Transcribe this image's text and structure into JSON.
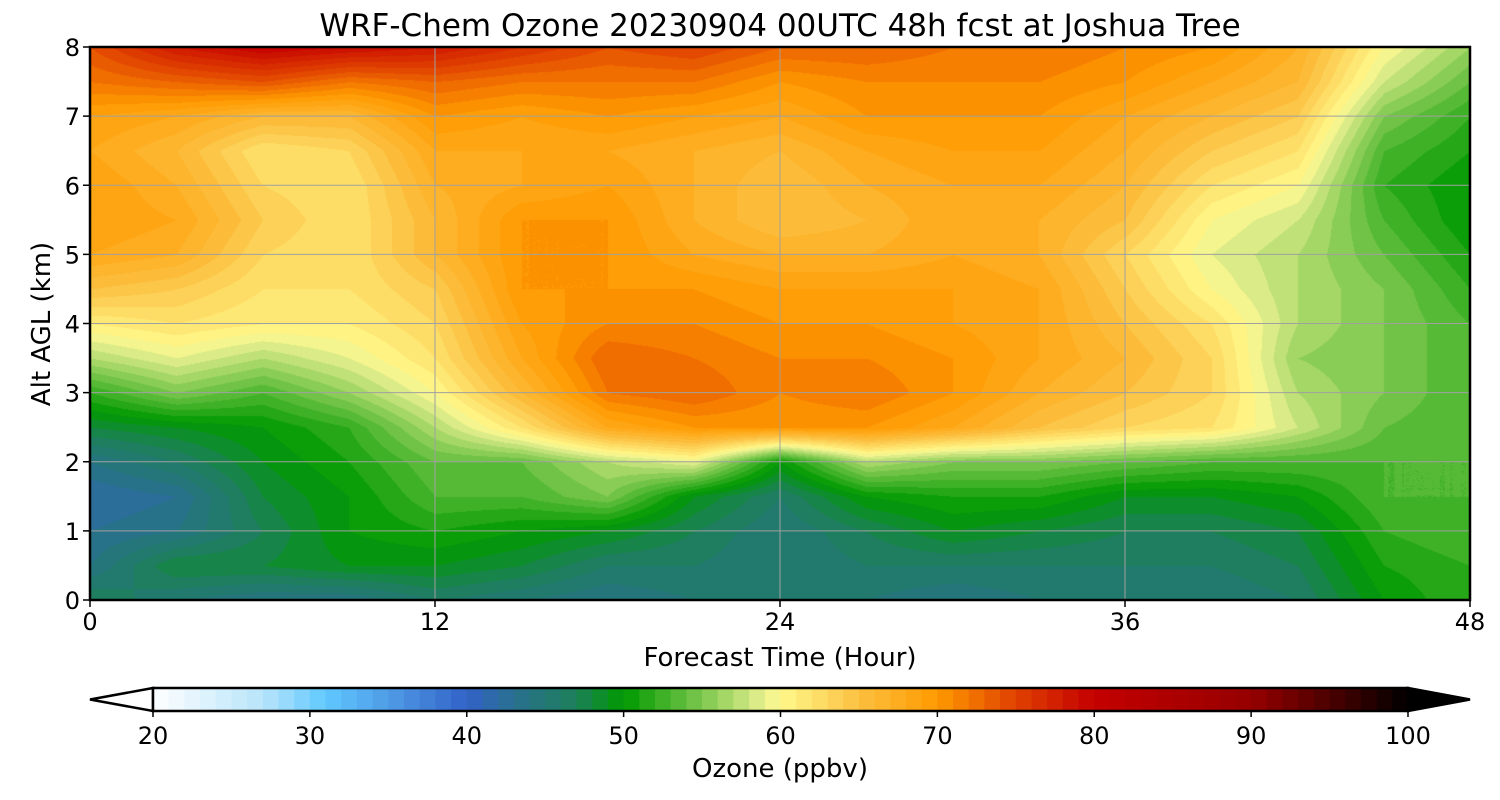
{
  "chart_data": {
    "type": "heatmap",
    "subtype": "filled-contour",
    "title": "WRF-Chem Ozone  20230904 00UTC 48h fcst at Joshua Tree",
    "xlabel": "Forecast Time (Hour)",
    "ylabel": "Alt AGL (km)",
    "xlim": [
      0,
      48
    ],
    "ylim": [
      0,
      8
    ],
    "xticks": [
      "0",
      "12",
      "24",
      "36",
      "48"
    ],
    "xtick_values": [
      0,
      12,
      24,
      36,
      48
    ],
    "yticks": [
      "0",
      "1",
      "2",
      "3",
      "4",
      "5",
      "6",
      "7",
      "8"
    ],
    "ytick_values": [
      0,
      1,
      2,
      3,
      4,
      5,
      6,
      7,
      8
    ],
    "grid": true,
    "x": [
      0,
      3,
      6,
      9,
      12,
      15,
      18,
      21,
      24,
      27,
      30,
      33,
      36,
      39,
      42,
      45,
      48
    ],
    "y": [
      0,
      0.5,
      1,
      1.5,
      2,
      2.5,
      3,
      3.5,
      4,
      4.5,
      5,
      5.5,
      6,
      6.5,
      7,
      7.5,
      8
    ],
    "values_by_hour": [
      [
        47,
        44,
        43,
        42,
        44,
        48,
        52,
        57,
        61,
        65,
        68,
        69,
        69,
        68,
        69,
        72,
        74
      ],
      [
        45,
        48,
        44,
        43,
        46,
        49,
        55,
        59,
        62,
        64,
        67,
        68,
        67,
        66,
        68,
        73,
        78
      ],
      [
        44,
        48,
        47,
        48,
        49,
        50,
        53,
        57,
        61,
        62,
        63,
        64,
        63,
        62,
        66,
        74,
        80
      ],
      [
        44,
        49,
        50,
        50,
        51,
        52,
        56,
        59,
        61,
        62,
        62,
        62,
        62,
        63,
        66,
        72,
        79
      ],
      [
        46,
        49,
        51,
        53,
        54,
        57,
        60,
        62,
        63,
        64,
        66,
        66,
        67,
        68,
        70,
        73,
        78
      ],
      [
        45,
        48,
        50,
        53,
        54,
        62,
        66,
        68,
        69,
        70,
        70,
        70,
        68,
        68,
        69,
        72,
        76
      ],
      [
        44,
        46,
        49,
        55,
        57,
        68,
        72,
        73,
        71,
        70,
        70,
        70,
        69,
        68,
        70,
        72,
        74
      ],
      [
        45,
        46,
        47,
        49,
        59,
        70,
        73,
        72,
        71,
        70,
        68,
        67,
        67,
        67,
        69,
        72,
        75
      ],
      [
        45,
        45,
        45,
        46,
        50,
        70,
        71,
        71,
        70,
        69,
        67,
        65,
        65,
        66,
        68,
        70,
        73
      ],
      [
        45,
        46,
        47,
        50,
        57,
        70,
        72,
        71,
        70,
        69,
        67,
        66,
        67,
        68,
        70,
        71,
        73
      ],
      [
        44,
        46,
        49,
        51,
        55,
        68,
        70,
        70,
        69,
        69,
        68,
        68,
        68,
        69,
        70,
        71,
        72
      ],
      [
        45,
        46,
        48,
        51,
        55,
        65,
        67,
        68,
        68,
        68,
        67,
        67,
        68,
        69,
        70,
        71,
        72
      ],
      [
        45,
        46,
        47,
        49,
        54,
        63,
        65,
        66,
        65,
        64,
        63,
        65,
        66,
        67,
        68,
        70,
        71
      ],
      [
        45,
        46,
        47,
        49,
        53,
        62,
        63,
        63,
        62,
        60,
        59,
        60,
        62,
        64,
        66,
        68,
        70
      ],
      [
        46,
        47,
        48,
        50,
        53,
        58,
        57,
        56,
        57,
        57,
        57,
        58,
        60,
        62,
        64,
        66,
        67
      ],
      [
        50,
        51,
        52,
        53,
        53,
        54,
        55,
        55,
        55,
        55,
        54,
        53,
        52,
        53,
        55,
        58,
        60
      ],
      [
        52,
        52,
        53,
        53,
        53,
        53,
        53,
        53,
        53,
        52,
        51,
        50,
        50,
        51,
        52,
        54,
        56
      ]
    ],
    "colorbar": {
      "label": "Ozone  (ppbv)",
      "range": [
        20,
        100
      ],
      "step": 1,
      "extend": "both",
      "ticks": [
        "20",
        "30",
        "40",
        "50",
        "60",
        "70",
        "80",
        "90",
        "100"
      ],
      "tick_values": [
        20,
        30,
        40,
        50,
        60,
        70,
        80,
        90,
        100
      ],
      "anchors": [
        [
          20,
          "#ffffff"
        ],
        [
          27,
          "#b8e4fa"
        ],
        [
          31,
          "#60c8ff"
        ],
        [
          36,
          "#4a90e0"
        ],
        [
          40,
          "#3262c8"
        ],
        [
          43,
          "#2a7090"
        ],
        [
          47,
          "#1c8058"
        ],
        [
          50,
          "#009900"
        ],
        [
          55,
          "#7cc84e"
        ],
        [
          59,
          "#e8f090"
        ],
        [
          60,
          "#fff98c"
        ],
        [
          65,
          "#fcc040"
        ],
        [
          70,
          "#ff9a00"
        ],
        [
          75,
          "#e04000"
        ],
        [
          80,
          "#c40000"
        ],
        [
          90,
          "#960000"
        ],
        [
          100,
          "#000000"
        ]
      ]
    }
  }
}
